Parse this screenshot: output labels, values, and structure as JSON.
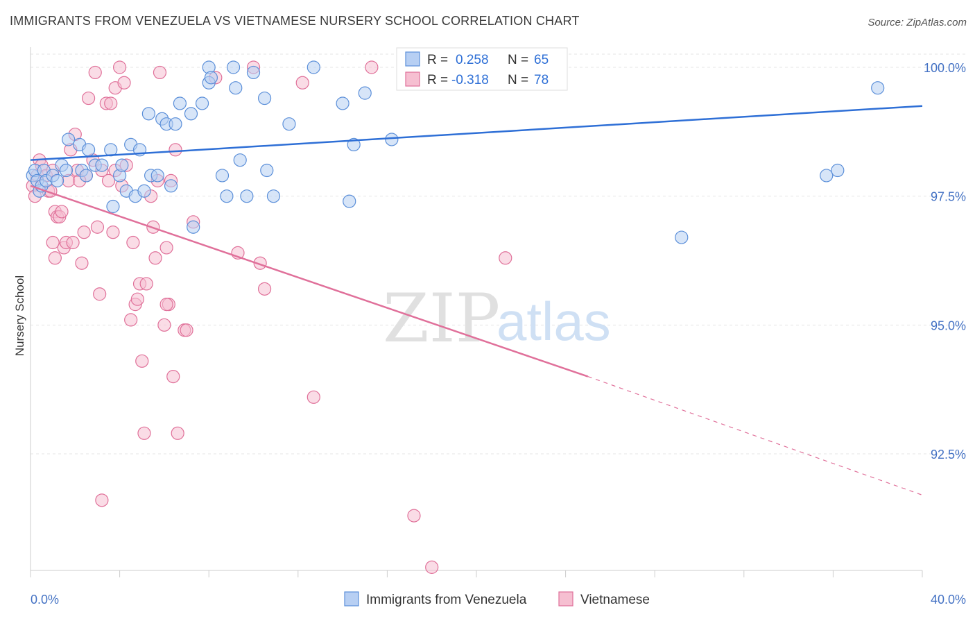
{
  "title": "IMMIGRANTS FROM VENEZUELA VS VIETNAMESE NURSERY SCHOOL CORRELATION CHART",
  "source": "Source: ZipAtlas.com",
  "watermark": {
    "zip": "ZIP",
    "atlas": "atlas"
  },
  "colors": {
    "blue": "#5b8fd9",
    "blue_fill": "#b7cff3",
    "pink": "#e07099",
    "pink_fill": "#f6bfd1",
    "blue_line": "#2e6fd6",
    "pink_line": "#e0709a"
  },
  "stats": {
    "r_label": "R =",
    "n_label": "N =",
    "blue": {
      "r": "0.258",
      "n": "65"
    },
    "pink": {
      "r": "-0.318",
      "n": "78"
    }
  },
  "chart_data": {
    "type": "scatter",
    "title": "IMMIGRANTS FROM VENEZUELA VS VIETNAMESE NURSERY SCHOOL CORRELATION CHART",
    "xlabel": "",
    "ylabel": "Nursery School",
    "xlim": [
      0,
      40
    ],
    "ylim": [
      90.0,
      100.4
    ],
    "x_tick_labels": [
      "0.0%",
      "40.0%"
    ],
    "y_ticks": [
      92.5,
      95.0,
      97.5,
      100.0
    ],
    "y_tick_labels": [
      "92.5%",
      "95.0%",
      "97.5%",
      "100.0%"
    ],
    "grid": true,
    "legend_placement": "bottom",
    "series": [
      {
        "name": "Immigrants from Venezuela",
        "color": "#5b8fd9",
        "trend": {
          "x": [
            0,
            40
          ],
          "y": [
            98.2,
            99.25
          ],
          "dashed_after": null
        },
        "points": [
          [
            0.1,
            97.9
          ],
          [
            0.2,
            98.0
          ],
          [
            0.3,
            97.8
          ],
          [
            0.4,
            97.6
          ],
          [
            0.5,
            97.7
          ],
          [
            0.6,
            98.0
          ],
          [
            0.7,
            97.8
          ],
          [
            1.0,
            97.9
          ],
          [
            1.2,
            97.8
          ],
          [
            1.4,
            98.1
          ],
          [
            1.6,
            98.0
          ],
          [
            1.7,
            98.6
          ],
          [
            2.2,
            98.5
          ],
          [
            2.3,
            98.0
          ],
          [
            2.5,
            97.9
          ],
          [
            2.6,
            98.4
          ],
          [
            2.9,
            98.1
          ],
          [
            3.2,
            98.1
          ],
          [
            3.6,
            98.4
          ],
          [
            3.7,
            97.3
          ],
          [
            4.0,
            97.9
          ],
          [
            4.1,
            98.1
          ],
          [
            4.3,
            97.6
          ],
          [
            4.5,
            98.5
          ],
          [
            4.7,
            97.5
          ],
          [
            4.9,
            98.4
          ],
          [
            5.1,
            97.6
          ],
          [
            5.3,
            99.1
          ],
          [
            5.4,
            97.9
          ],
          [
            5.7,
            97.9
          ],
          [
            5.9,
            99.0
          ],
          [
            6.1,
            98.9
          ],
          [
            6.3,
            97.7
          ],
          [
            6.5,
            98.9
          ],
          [
            6.7,
            99.3
          ],
          [
            7.2,
            99.1
          ],
          [
            7.3,
            96.9
          ],
          [
            7.7,
            99.3
          ],
          [
            8.0,
            99.7
          ],
          [
            8.0,
            100.0
          ],
          [
            8.1,
            99.8
          ],
          [
            8.6,
            97.9
          ],
          [
            8.8,
            97.5
          ],
          [
            9.1,
            100.0
          ],
          [
            9.2,
            99.6
          ],
          [
            9.4,
            98.2
          ],
          [
            9.7,
            97.5
          ],
          [
            10.0,
            99.9
          ],
          [
            10.5,
            99.4
          ],
          [
            10.6,
            98.0
          ],
          [
            10.9,
            97.5
          ],
          [
            11.6,
            98.9
          ],
          [
            12.7,
            100.0
          ],
          [
            14.0,
            99.3
          ],
          [
            14.3,
            97.4
          ],
          [
            14.5,
            98.5
          ],
          [
            15.0,
            99.5
          ],
          [
            16.2,
            98.6
          ],
          [
            17.5,
            100.0
          ],
          [
            21.0,
            100.0
          ],
          [
            21.6,
            100.0
          ],
          [
            29.2,
            96.7
          ],
          [
            35.7,
            97.9
          ],
          [
            36.2,
            98.0
          ],
          [
            38.0,
            99.6
          ]
        ]
      },
      {
        "name": "Vietnamese",
        "color": "#e07099",
        "trend": {
          "x": [
            0,
            25,
            40
          ],
          "y": [
            97.7,
            94.0,
            91.7
          ],
          "dashed_after": 25
        },
        "points": [
          [
            0.1,
            97.7
          ],
          [
            0.2,
            97.5
          ],
          [
            0.3,
            97.9
          ],
          [
            0.4,
            98.2
          ],
          [
            0.5,
            98.1
          ],
          [
            0.7,
            97.9
          ],
          [
            0.8,
            97.6
          ],
          [
            0.9,
            97.6
          ],
          [
            1.0,
            98.0
          ],
          [
            1.1,
            97.2
          ],
          [
            1.2,
            97.1
          ],
          [
            1.1,
            96.3
          ],
          [
            1.3,
            97.1
          ],
          [
            1.4,
            97.2
          ],
          [
            1.5,
            96.5
          ],
          [
            1.6,
            96.6
          ],
          [
            1.7,
            97.8
          ],
          [
            1.8,
            98.4
          ],
          [
            1.9,
            96.6
          ],
          [
            2.0,
            98.7
          ],
          [
            2.1,
            98.0
          ],
          [
            2.3,
            96.2
          ],
          [
            2.4,
            96.8
          ],
          [
            2.5,
            97.9
          ],
          [
            2.6,
            99.4
          ],
          [
            2.8,
            98.2
          ],
          [
            2.9,
            99.9
          ],
          [
            3.0,
            96.9
          ],
          [
            3.1,
            95.6
          ],
          [
            3.2,
            98.0
          ],
          [
            3.2,
            91.6
          ],
          [
            3.4,
            99.3
          ],
          [
            3.5,
            97.8
          ],
          [
            3.6,
            99.3
          ],
          [
            3.7,
            96.8
          ],
          [
            3.8,
            99.6
          ],
          [
            4.0,
            100.0
          ],
          [
            4.1,
            97.7
          ],
          [
            4.2,
            99.7
          ],
          [
            4.3,
            98.1
          ],
          [
            4.5,
            95.1
          ],
          [
            4.6,
            96.6
          ],
          [
            4.7,
            95.4
          ],
          [
            4.8,
            95.5
          ],
          [
            4.9,
            95.8
          ],
          [
            5.0,
            94.3
          ],
          [
            5.1,
            92.9
          ],
          [
            5.2,
            95.8
          ],
          [
            5.4,
            97.5
          ],
          [
            5.5,
            96.9
          ],
          [
            5.6,
            96.3
          ],
          [
            5.7,
            97.8
          ],
          [
            5.8,
            99.9
          ],
          [
            6.0,
            95.0
          ],
          [
            6.1,
            96.5
          ],
          [
            6.2,
            95.4
          ],
          [
            6.3,
            97.8
          ],
          [
            6.4,
            94.0
          ],
          [
            6.5,
            98.4
          ],
          [
            6.6,
            92.9
          ],
          [
            6.9,
            94.9
          ],
          [
            7.0,
            94.9
          ],
          [
            7.3,
            97.0
          ],
          [
            8.3,
            99.8
          ],
          [
            9.3,
            96.4
          ],
          [
            10.0,
            100.0
          ],
          [
            10.3,
            96.2
          ],
          [
            10.5,
            95.7
          ],
          [
            12.2,
            99.7
          ],
          [
            12.7,
            93.6
          ],
          [
            15.3,
            100.0
          ],
          [
            17.2,
            91.3
          ],
          [
            18.0,
            90.3
          ],
          [
            21.3,
            96.3
          ],
          [
            1.0,
            96.6
          ],
          [
            2.2,
            97.8
          ],
          [
            3.8,
            98.0
          ],
          [
            6.1,
            95.4
          ]
        ]
      }
    ]
  }
}
